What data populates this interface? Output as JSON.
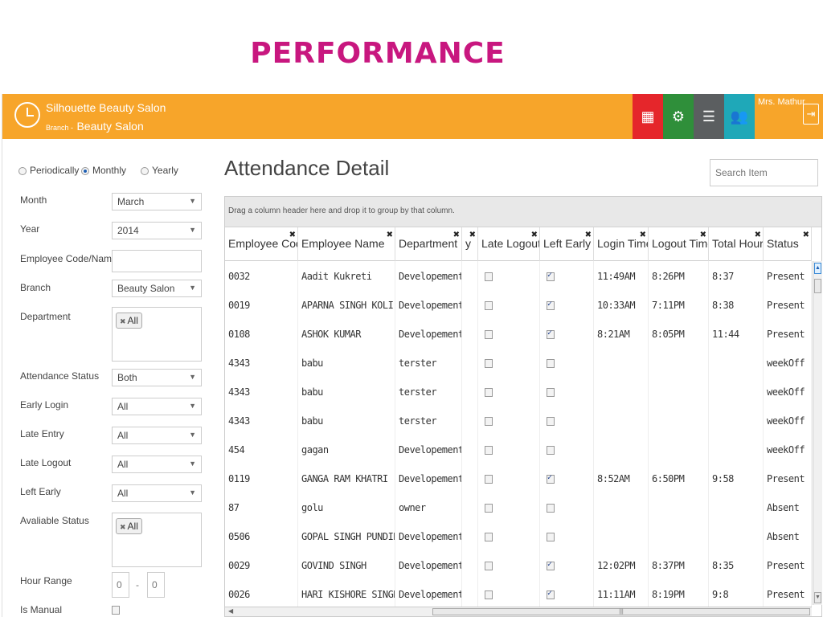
{
  "slide_title": "PERFORMANCE",
  "header": {
    "company": "Silhouette Beauty Salon",
    "branch_prefix": "Branch -",
    "branch_name": "Beauty Salon",
    "user": "Mrs. Mathur",
    "exit_icon": "⇥"
  },
  "filters": {
    "periods": [
      {
        "label": "Periodically",
        "selected": false
      },
      {
        "label": "Monthly",
        "selected": true
      },
      {
        "label": "Yearly",
        "selected": false
      }
    ],
    "month_label": "Month",
    "month_value": "March",
    "year_label": "Year",
    "year_value": "2014",
    "emp_label": "Employee Code/Name",
    "emp_value": "",
    "branch_label": "Branch",
    "branch_value": "Beauty Salon",
    "department_label": "Department",
    "department_tag": "All",
    "att_status_label": "Attendance Status",
    "att_status_value": "Both",
    "early_login_label": "Early Login",
    "early_login_value": "All",
    "late_entry_label": "Late Entry",
    "late_entry_value": "All",
    "late_logout_label": "Late Logout",
    "late_logout_value": "All",
    "left_early_label": "Left Early",
    "left_early_value": "All",
    "avail_status_label": "Avaliable Status",
    "avail_status_tag": "All",
    "hour_range_label": "Hour Range",
    "hour_from": "0",
    "hour_sep": "-",
    "hour_to": "0",
    "manual_label": "Is Manual"
  },
  "main": {
    "title": "Attendance Detail",
    "search_placeholder": "Search Item",
    "group_hint": "Drag a column header here and drop it to group by that column."
  },
  "columns": [
    "Employee Code",
    "Employee Name",
    "Department",
    "y",
    "Late Logout",
    "Left Early",
    "Login Time",
    "Logout Time",
    "Total Hours",
    "Status"
  ],
  "rows": [
    {
      "code": "0032",
      "name": "Aadit Kukreti",
      "dept": "Developement",
      "late": false,
      "early": true,
      "login": "11:49AM",
      "logout": "8:26PM",
      "total": "8:37",
      "status": "Present"
    },
    {
      "code": "0019",
      "name": "APARNA SINGH KOLI",
      "dept": "Developement",
      "late": false,
      "early": true,
      "login": "10:33AM",
      "logout": "7:11PM",
      "total": "8:38",
      "status": "Present"
    },
    {
      "code": "0108",
      "name": "ASHOK KUMAR",
      "dept": "Developement",
      "late": false,
      "early": true,
      "login": "8:21AM",
      "logout": "8:05PM",
      "total": "11:44",
      "status": "Present"
    },
    {
      "code": "4343",
      "name": "babu",
      "dept": "terster",
      "late": false,
      "early": false,
      "login": "",
      "logout": "",
      "total": "",
      "status": "weekOff"
    },
    {
      "code": "4343",
      "name": "babu",
      "dept": "terster",
      "late": false,
      "early": false,
      "login": "",
      "logout": "",
      "total": "",
      "status": "weekOff"
    },
    {
      "code": "4343",
      "name": "babu",
      "dept": "terster",
      "late": false,
      "early": false,
      "login": "",
      "logout": "",
      "total": "",
      "status": "weekOff"
    },
    {
      "code": "454",
      "name": "gagan",
      "dept": "Developement",
      "late": false,
      "early": false,
      "login": "",
      "logout": "",
      "total": "",
      "status": "weekOff"
    },
    {
      "code": "0119",
      "name": "GANGA RAM KHATRI",
      "dept": "Developement",
      "late": false,
      "early": true,
      "login": "8:52AM",
      "logout": "6:50PM",
      "total": "9:58",
      "status": "Present"
    },
    {
      "code": "87",
      "name": "golu",
      "dept": "owner",
      "late": false,
      "early": false,
      "login": "",
      "logout": "",
      "total": "",
      "status": "Absent"
    },
    {
      "code": "0506",
      "name": "GOPAL SINGH PUNDIR",
      "dept": "Developement",
      "late": false,
      "early": false,
      "login": "",
      "logout": "",
      "total": "",
      "status": "Absent"
    },
    {
      "code": "0029",
      "name": "GOVIND SINGH",
      "dept": "Developement",
      "late": false,
      "early": true,
      "login": "12:02PM",
      "logout": "8:37PM",
      "total": "8:35",
      "status": "Present"
    },
    {
      "code": "0026",
      "name": "HARI KISHORE SINGH",
      "dept": "Developement",
      "late": false,
      "early": true,
      "login": "11:11AM",
      "logout": "8:19PM",
      "total": "9:8",
      "status": "Present"
    }
  ]
}
